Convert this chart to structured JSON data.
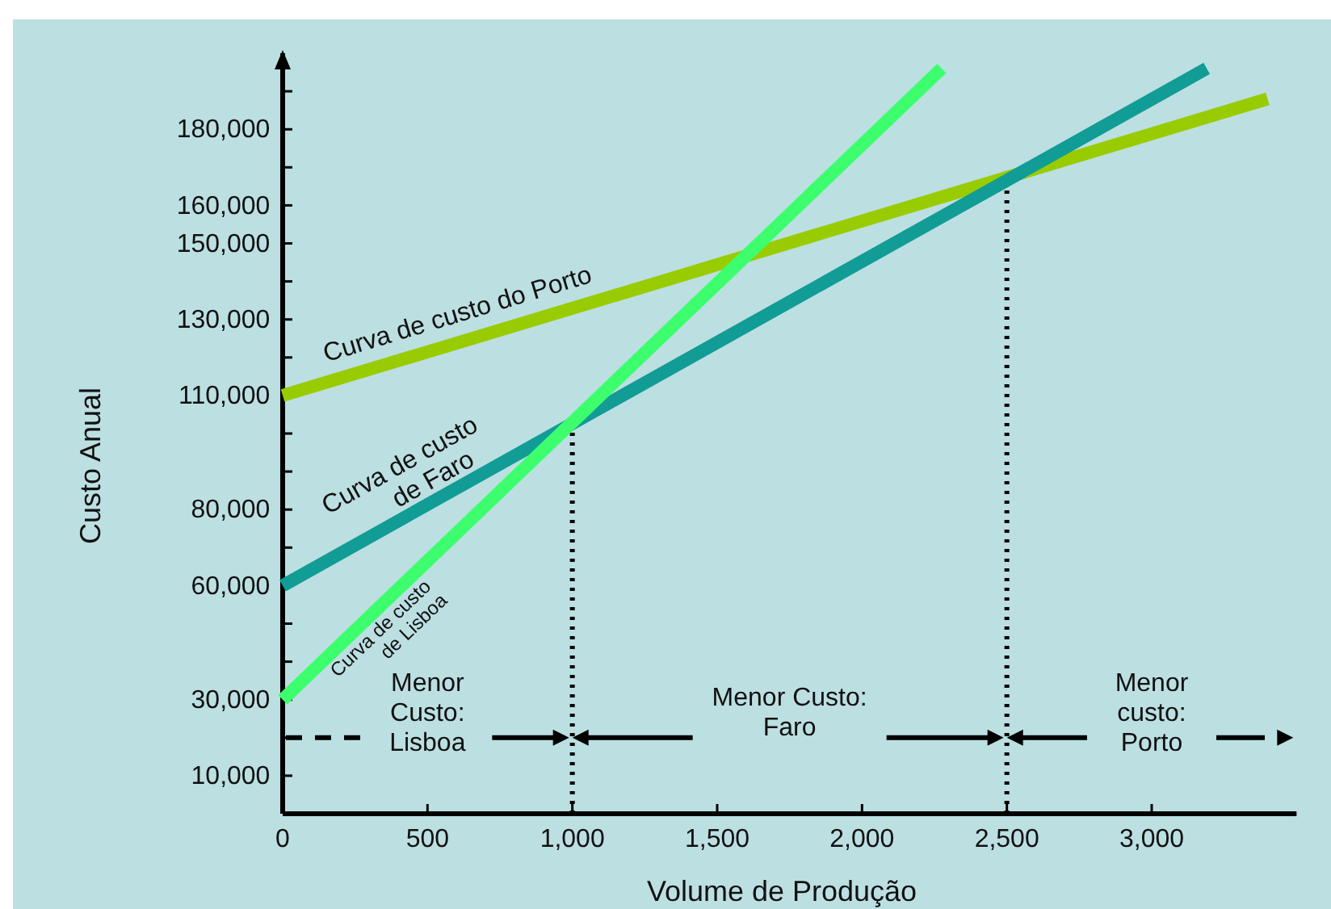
{
  "chart_data": {
    "type": "line",
    "xlabel": "Volume de Produção",
    "ylabel": "Custo Anual",
    "xlim": [
      0,
      3500
    ],
    "xticks": [
      0,
      500,
      {
        "value": 1000,
        "label": "1,000"
      },
      {
        "value": 1500,
        "label": "1,500"
      },
      {
        "value": 2000,
        "label": "2,000"
      },
      {
        "value": 2500,
        "label": "2,500"
      },
      {
        "value": 3000,
        "label": "3,000"
      }
    ],
    "ylim": [
      0,
      200000
    ],
    "yticks": [
      {
        "value": 10000,
        "label": "10,000"
      },
      {
        "value": 20000,
        "label": null
      },
      {
        "value": 30000,
        "label": "30,000"
      },
      {
        "value": 40000,
        "label": null
      },
      {
        "value": 50000,
        "label": null
      },
      {
        "value": 60000,
        "label": "60,000"
      },
      {
        "value": 70000,
        "label": null
      },
      {
        "value": 80000,
        "label": "80,000"
      },
      {
        "value": 90000,
        "label": null
      },
      {
        "value": 100000,
        "label": null
      },
      {
        "value": 110000,
        "label": "110,000"
      },
      {
        "value": 120000,
        "label": null
      },
      {
        "value": 130000,
        "label": "130,000"
      },
      {
        "value": 140000,
        "label": null
      },
      {
        "value": 150000,
        "label": "150,000"
      },
      {
        "value": 160000,
        "label": "160,000"
      },
      {
        "value": 170000,
        "label": null
      },
      {
        "value": 180000,
        "label": "180,000"
      },
      {
        "value": 190000,
        "label": null
      }
    ],
    "grid": false,
    "marker": "none",
    "line_style": "solid",
    "series": [
      {
        "name": "Curva de custo do Porto",
        "color": "#99cc00",
        "x": [
          0,
          3400
        ],
        "values": [
          110000,
          188000
        ]
      },
      {
        "name": "Curva de custo de Faro",
        "color": "#119c96",
        "x": [
          0,
          3190
        ],
        "values": [
          60000,
          196000
        ]
      },
      {
        "name": "Curva de custo de Lisboa",
        "color": "#3dff6e",
        "x": [
          0,
          2275
        ],
        "values": [
          30000,
          196000
        ]
      }
    ],
    "ref_lines": [
      {
        "axis": "x",
        "value": 1000,
        "line_style": "dotted",
        "color": "#000000"
      },
      {
        "axis": "x",
        "value": 2500,
        "line_style": "dotted",
        "color": "#000000"
      }
    ],
    "annotations": [
      "Menor Custo: Lisboa",
      {
        "text": "Menor Custo: Faro",
        "x": 1000,
        "y": 20000
      },
      {
        "text": "Menor custo: Porto",
        "x": 2500,
        "y": 20000
      }
    ]
  }
}
